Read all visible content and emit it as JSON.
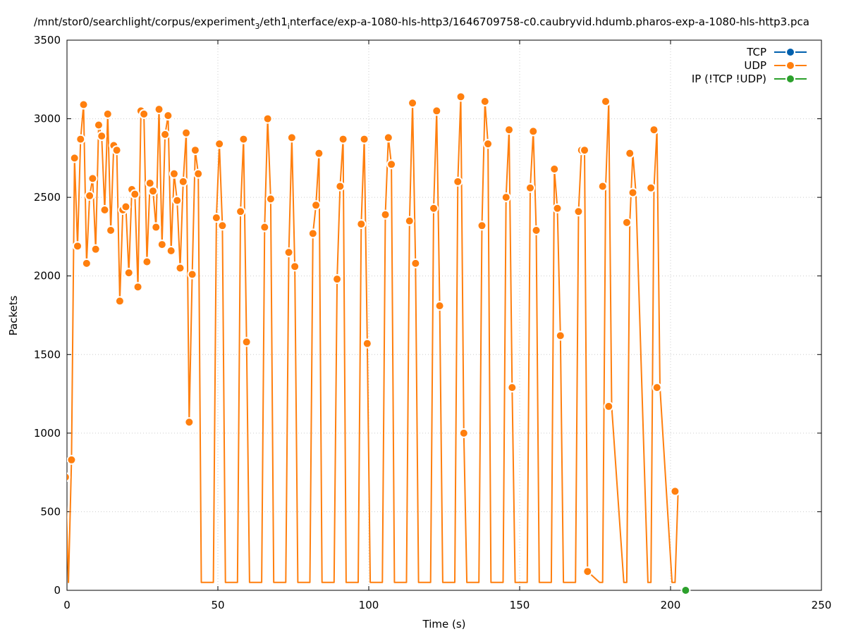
{
  "chart_data": {
    "type": "line",
    "title": "/mnt/stor0/searchlight/corpus/experiment",
    "title_sub": "3",
    "title_mid": "/eth1",
    "title_sub2": "i",
    "title_end": "nterface/exp-a-1080-hls-http3/1646709758-c0.caubryvid.hdumb.pharos-exp-a-1080-hls-http3.pca",
    "xlabel": "Time (s)",
    "ylabel": "Packets",
    "xlim": [
      0,
      250
    ],
    "ylim": [
      0,
      3500
    ],
    "x_ticks": [
      0,
      50,
      100,
      150,
      200,
      250
    ],
    "y_ticks": [
      0,
      500,
      1000,
      1500,
      2000,
      2500,
      3000,
      3500
    ],
    "grid": true,
    "legend_position": "top-right",
    "colors": {
      "tcp": "#0060ad",
      "udp": "#ff7f0e",
      "ip": "#2ca02c",
      "grid": "#cccccc"
    },
    "series": [
      {
        "name": "TCP",
        "color": "#0060ad",
        "x": [],
        "y": []
      },
      {
        "name": "UDP",
        "color": "#ff7f0e",
        "line_x": [
          -0.5,
          0.5,
          1.5,
          2.5,
          3.5,
          4.5,
          5.5,
          6.5,
          7.5,
          8.5,
          9.5,
          10.5,
          11.5,
          12.5,
          13.5,
          14.5,
          15.5,
          16.5,
          17.5,
          18.5,
          19.5,
          20.5,
          21.5,
          22.5,
          23.5,
          24.5,
          25.5,
          26.5,
          27.5,
          28.5,
          29.5,
          30.5,
          31.5,
          32.5,
          33.5,
          34.5,
          35.5,
          36.5,
          37.5,
          38.5,
          39.5,
          40.5,
          41.5,
          42.5,
          43.5,
          44.5,
          48.5,
          49.5,
          50.5,
          51.5,
          52.5,
          56.5,
          57.5,
          58.5,
          59.5,
          60.5,
          64.5,
          65.5,
          66.5,
          67.5,
          68.5,
          72.5,
          73.5,
          74.5,
          75.5,
          76.5,
          80.5,
          81.5,
          82.5,
          83.5,
          84.5,
          88.5,
          89.5,
          90.5,
          91.5,
          92.5,
          96.5,
          97.5,
          98.5,
          99.5,
          100.5,
          104.5,
          105.5,
          106.5,
          107.5,
          108.5,
          112.5,
          113.5,
          114.5,
          115.5,
          116.5,
          120.5,
          121.5,
          122.5,
          123.5,
          124.5,
          128.5,
          129.5,
          130.5,
          131.5,
          132.5,
          136.5,
          137.5,
          138.5,
          139.5,
          140.5,
          144.5,
          145.5,
          146.5,
          147.5,
          148.5,
          152.5,
          153.5,
          154.5,
          155.5,
          156.5,
          160.5,
          161.5,
          162.5,
          163.5,
          164.5,
          168.5,
          169.5,
          170.5,
          171.5,
          172.5,
          176.5,
          177.5,
          178.5,
          179.5,
          180.5,
          184.5,
          185.5,
          186.5,
          187.5,
          188.5,
          192.5,
          193.5,
          194.5,
          195.5,
          196.5,
          200.5,
          201.5,
          202.5
        ],
        "line_y": [
          720,
          50,
          830,
          2750,
          2190,
          2870,
          3090,
          2080,
          2510,
          2620,
          2170,
          2960,
          2890,
          2420,
          3030,
          2290,
          2830,
          2800,
          1840,
          2420,
          2440,
          2020,
          2550,
          2520,
          1930,
          3050,
          3030,
          2090,
          2590,
          2540,
          2310,
          3060,
          2200,
          2900,
          3020,
          2160,
          2650,
          2480,
          2050,
          2600,
          2910,
          1070,
          2010,
          2800,
          2650,
          50,
          50,
          2370,
          2840,
          2320,
          50,
          50,
          2410,
          2870,
          1580,
          50,
          50,
          2310,
          3000,
          2490,
          50,
          50,
          2150,
          2880,
          2060,
          50,
          50,
          2270,
          2450,
          2780,
          50,
          50,
          1980,
          2570,
          2870,
          50,
          50,
          2330,
          2870,
          1570,
          50,
          50,
          2390,
          2880,
          2710,
          50,
          50,
          2350,
          3100,
          2080,
          50,
          50,
          2430,
          3050,
          1810,
          50,
          50,
          2600,
          3140,
          1000,
          50,
          50,
          2320,
          3110,
          2840,
          50,
          50,
          2500,
          2930,
          1290,
          50,
          50,
          2560,
          2920,
          2290,
          50,
          50,
          2680,
          2430,
          1620,
          50,
          50,
          2410,
          2800,
          2800,
          120,
          50,
          50,
          2570,
          3110,
          1170,
          50,
          50,
          2340,
          2780,
          2530,
          50,
          50,
          2560,
          2930,
          1290,
          50,
          50,
          630,
          50
        ],
        "points_x": [
          -0.5,
          1.5,
          2.5,
          3.5,
          4.5,
          5.5,
          6.5,
          7.5,
          8.5,
          9.5,
          10.5,
          11.5,
          12.5,
          13.5,
          14.5,
          15.5,
          16.5,
          17.5,
          18.5,
          19.5,
          20.5,
          21.5,
          22.5,
          23.5,
          24.5,
          25.5,
          26.5,
          27.5,
          28.5,
          29.5,
          30.5,
          31.5,
          32.5,
          33.5,
          34.5,
          35.5,
          36.5,
          37.5,
          38.5,
          39.5,
          40.5,
          41.5,
          42.5,
          43.5,
          49.5,
          50.5,
          51.5,
          57.5,
          58.5,
          59.5,
          65.5,
          66.5,
          67.5,
          73.5,
          74.5,
          75.5,
          81.5,
          82.5,
          83.5,
          89.5,
          90.5,
          91.5,
          97.5,
          98.5,
          99.5,
          105.5,
          106.5,
          107.5,
          113.5,
          114.5,
          115.5,
          121.5,
          122.5,
          123.5,
          129.5,
          130.5,
          131.5,
          137.5,
          138.5,
          139.5,
          145.5,
          146.5,
          147.5,
          153.5,
          154.5,
          155.5,
          161.5,
          162.5,
          163.5,
          169.5,
          170.5,
          171.5,
          172.5,
          177.5,
          178.5,
          179.5,
          185.5,
          186.5,
          187.5,
          193.5,
          194.5,
          195.5,
          201.5
        ],
        "points_y": [
          720,
          830,
          2750,
          2190,
          2870,
          3090,
          2080,
          2510,
          2620,
          2170,
          2960,
          2890,
          2420,
          3030,
          2290,
          2830,
          2800,
          1840,
          2420,
          2440,
          2020,
          2550,
          2520,
          1930,
          3050,
          3030,
          2090,
          2590,
          2540,
          2310,
          3060,
          2200,
          2900,
          3020,
          2160,
          2650,
          2480,
          2050,
          2600,
          2910,
          1070,
          2010,
          2800,
          2650,
          2370,
          2840,
          2320,
          2410,
          2870,
          1580,
          2310,
          3000,
          2490,
          2150,
          2880,
          2060,
          2270,
          2450,
          2780,
          1980,
          2570,
          2870,
          2330,
          2870,
          1570,
          2390,
          2880,
          2710,
          2350,
          3100,
          2080,
          2430,
          3050,
          1810,
          2600,
          3140,
          1000,
          2320,
          3110,
          2840,
          2500,
          2930,
          1290,
          2560,
          2920,
          2290,
          2680,
          2430,
          1620,
          2410,
          2800,
          2800,
          120,
          2570,
          3110,
          1170,
          2340,
          2780,
          2530,
          2560,
          2930,
          1290,
          630
        ]
      },
      {
        "name": "IP (!TCP  !UDP)",
        "color": "#2ca02c",
        "x": [
          205
        ],
        "y": [
          0
        ]
      }
    ]
  }
}
